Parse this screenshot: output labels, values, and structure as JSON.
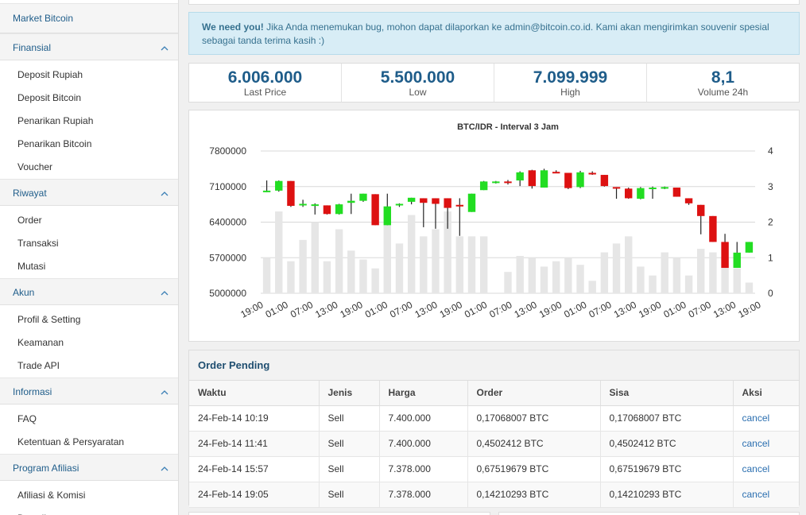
{
  "sidebar": {
    "market": "Market Bitcoin",
    "groups": [
      {
        "title": "Finansial",
        "items": [
          "Deposit Rupiah",
          "Deposit Bitcoin",
          "Penarikan Rupiah",
          "Penarikan Bitcoin",
          "Voucher"
        ]
      },
      {
        "title": "Riwayat",
        "items": [
          "Order",
          "Transaksi",
          "Mutasi"
        ]
      },
      {
        "title": "Akun",
        "items": [
          "Profil & Setting",
          "Keamanan",
          "Trade API"
        ]
      },
      {
        "title": "Informasi",
        "items": [
          "FAQ",
          "Ketentuan & Persyaratan"
        ]
      },
      {
        "title": "Program Afiliasi",
        "items": [
          "Afiliasi & Komisi",
          "Downline"
        ]
      }
    ]
  },
  "alert": {
    "strong": "We need you!",
    "text": "Jika Anda menemukan bug, mohon dapat dilaporkan ke admin@bitcoin.co.id. Kami akan mengirimkan souvenir spesial sebagai tanda terima kasih :)"
  },
  "stats": [
    {
      "value": "6.006.000",
      "label": "Last Price"
    },
    {
      "value": "5.500.000",
      "label": "Low"
    },
    {
      "value": "7.099.999",
      "label": "High"
    },
    {
      "value": "8,1",
      "label": "Volume 24h"
    }
  ],
  "colors": {
    "up": "#22dd22",
    "down": "#dd1111",
    "volume": "#e6e6e6",
    "wick": "#222222"
  },
  "chart_data": {
    "type": "candlestick",
    "title": "BTC/IDR - Interval 3 Jam",
    "ylim": [
      5000000,
      7800000
    ],
    "y_ticks": [
      "7800000",
      "7100000",
      "6400000",
      "5700000",
      "5000000"
    ],
    "y2lim": [
      0,
      4
    ],
    "y2_ticks": [
      "4",
      "3",
      "2",
      "1",
      "0"
    ],
    "x_labels": [
      "19:00",
      "01:00",
      "07:00",
      "13:00",
      "19:00",
      "01:00",
      "07:00",
      "13:00",
      "19:00",
      "01:00",
      "07:00",
      "13:00",
      "19:00",
      "01:00",
      "07:00",
      "13:00",
      "19:00",
      "01:00",
      "07:00",
      "13:00",
      "19:00"
    ],
    "series": [
      {
        "o": 7020000,
        "h": 7220000,
        "l": 6990000,
        "c": 7020000,
        "v": 1.0
      },
      {
        "o": 7020000,
        "h": 7220000,
        "l": 7000000,
        "c": 7210000,
        "v": 2.3
      },
      {
        "o": 7210000,
        "h": 7210000,
        "l": 6700000,
        "c": 6720000,
        "v": 0.9
      },
      {
        "o": 6740000,
        "h": 6840000,
        "l": 6700000,
        "c": 6760000,
        "v": 1.5
      },
      {
        "o": 6720000,
        "h": 6770000,
        "l": 6550000,
        "c": 6750000,
        "v": 2.0
      },
      {
        "o": 6730000,
        "h": 6730000,
        "l": 6550000,
        "c": 6560000,
        "v": 0.9
      },
      {
        "o": 6560000,
        "h": 6760000,
        "l": 6550000,
        "c": 6750000,
        "v": 1.8
      },
      {
        "o": 6780000,
        "h": 6960000,
        "l": 6560000,
        "c": 6820000,
        "v": 1.2
      },
      {
        "o": 6820000,
        "h": 6960000,
        "l": 6800000,
        "c": 6960000,
        "v": 0.95
      },
      {
        "o": 6950000,
        "h": 6950000,
        "l": 6340000,
        "c": 6340000,
        "v": 0.7
      },
      {
        "o": 6340000,
        "h": 6960000,
        "l": 6340000,
        "c": 6710000,
        "v": 2.3
      },
      {
        "o": 6740000,
        "h": 6770000,
        "l": 6700000,
        "c": 6760000,
        "v": 1.4
      },
      {
        "o": 6800000,
        "h": 6880000,
        "l": 6750000,
        "c": 6880000,
        "v": 2.2
      },
      {
        "o": 6870000,
        "h": 6870000,
        "l": 6300000,
        "c": 6780000,
        "v": 1.6
      },
      {
        "o": 6870000,
        "h": 6870000,
        "l": 6270000,
        "c": 6760000,
        "v": 1.8
      },
      {
        "o": 6870000,
        "h": 6870000,
        "l": 6270000,
        "c": 6680000,
        "v": 2.3
      },
      {
        "o": 6740000,
        "h": 6870000,
        "l": 6130000,
        "c": 6730000,
        "v": 1.6
      },
      {
        "o": 6600000,
        "h": 6960000,
        "l": 6600000,
        "c": 6960000,
        "v": 1.6
      },
      {
        "o": 7030000,
        "h": 7210000,
        "l": 7030000,
        "c": 7200000,
        "v": 1.6
      },
      {
        "o": 7190000,
        "h": 7210000,
        "l": 7160000,
        "c": 7200000,
        "v": 0
      },
      {
        "o": 7200000,
        "h": 7230000,
        "l": 7140000,
        "c": 7190000,
        "v": 0.6
      },
      {
        "o": 7220000,
        "h": 7400000,
        "l": 7110000,
        "c": 7380000,
        "v": 1.05
      },
      {
        "o": 7420000,
        "h": 7430000,
        "l": 7060000,
        "c": 7110000,
        "v": 1.0
      },
      {
        "o": 7080000,
        "h": 7450000,
        "l": 7080000,
        "c": 7420000,
        "v": 0.75
      },
      {
        "o": 7390000,
        "h": 7420000,
        "l": 7380000,
        "c": 7360000,
        "v": 0.9
      },
      {
        "o": 7370000,
        "h": 7370000,
        "l": 7050000,
        "c": 7070000,
        "v": 1.0
      },
      {
        "o": 7090000,
        "h": 7410000,
        "l": 7070000,
        "c": 7380000,
        "v": 0.8
      },
      {
        "o": 7370000,
        "h": 7400000,
        "l": 7330000,
        "c": 7350000,
        "v": 0.35
      },
      {
        "o": 7330000,
        "h": 7330000,
        "l": 7100000,
        "c": 7110000,
        "v": 1.15
      },
      {
        "o": 7090000,
        "h": 7090000,
        "l": 6860000,
        "c": 7060000,
        "v": 1.4
      },
      {
        "o": 7060000,
        "h": 7080000,
        "l": 6860000,
        "c": 6870000,
        "v": 1.6
      },
      {
        "o": 6860000,
        "h": 7090000,
        "l": 6850000,
        "c": 7070000,
        "v": 0.75
      },
      {
        "o": 7080000,
        "h": 7100000,
        "l": 6860000,
        "c": 7080000,
        "v": 0.5
      },
      {
        "o": 7060000,
        "h": 7100000,
        "l": 7050000,
        "c": 7090000,
        "v": 1.15
      },
      {
        "o": 7080000,
        "h": 7080000,
        "l": 6900000,
        "c": 6900000,
        "v": 1.0
      },
      {
        "o": 6870000,
        "h": 6870000,
        "l": 6740000,
        "c": 6770000,
        "v": 0.5
      },
      {
        "o": 6740000,
        "h": 6740000,
        "l": 6160000,
        "c": 6520000,
        "v": 1.25
      },
      {
        "o": 6520000,
        "h": 6520000,
        "l": 6010000,
        "c": 6010000,
        "v": 1.15
      },
      {
        "o": 6010000,
        "h": 6170000,
        "l": 5500000,
        "c": 5500000,
        "v": 1.0
      },
      {
        "o": 5500000,
        "h": 6010000,
        "l": 5500000,
        "c": 5800000,
        "v": 0.7
      },
      {
        "o": 5800000,
        "h": 6010000,
        "l": 5800000,
        "c": 6010000,
        "v": 0.3
      }
    ]
  },
  "orders": {
    "title": "Order Pending",
    "columns": [
      "Waktu",
      "Jenis",
      "Harga",
      "Order",
      "Sisa",
      "Aksi"
    ],
    "rows": [
      [
        "24-Feb-14 10:19",
        "Sell",
        "7.400.000",
        "0,17068007 BTC",
        "0,17068007 BTC",
        "cancel"
      ],
      [
        "24-Feb-14 11:41",
        "Sell",
        "7.400.000",
        "0,4502412 BTC",
        "0,4502412 BTC",
        "cancel"
      ],
      [
        "24-Feb-14 15:57",
        "Sell",
        "7.378.000",
        "0,67519679 BTC",
        "0,67519679 BTC",
        "cancel"
      ],
      [
        "24-Feb-14 19:05",
        "Sell",
        "7.378.000",
        "0,14210293 BTC",
        "0,14210293 BTC",
        "cancel"
      ]
    ]
  }
}
